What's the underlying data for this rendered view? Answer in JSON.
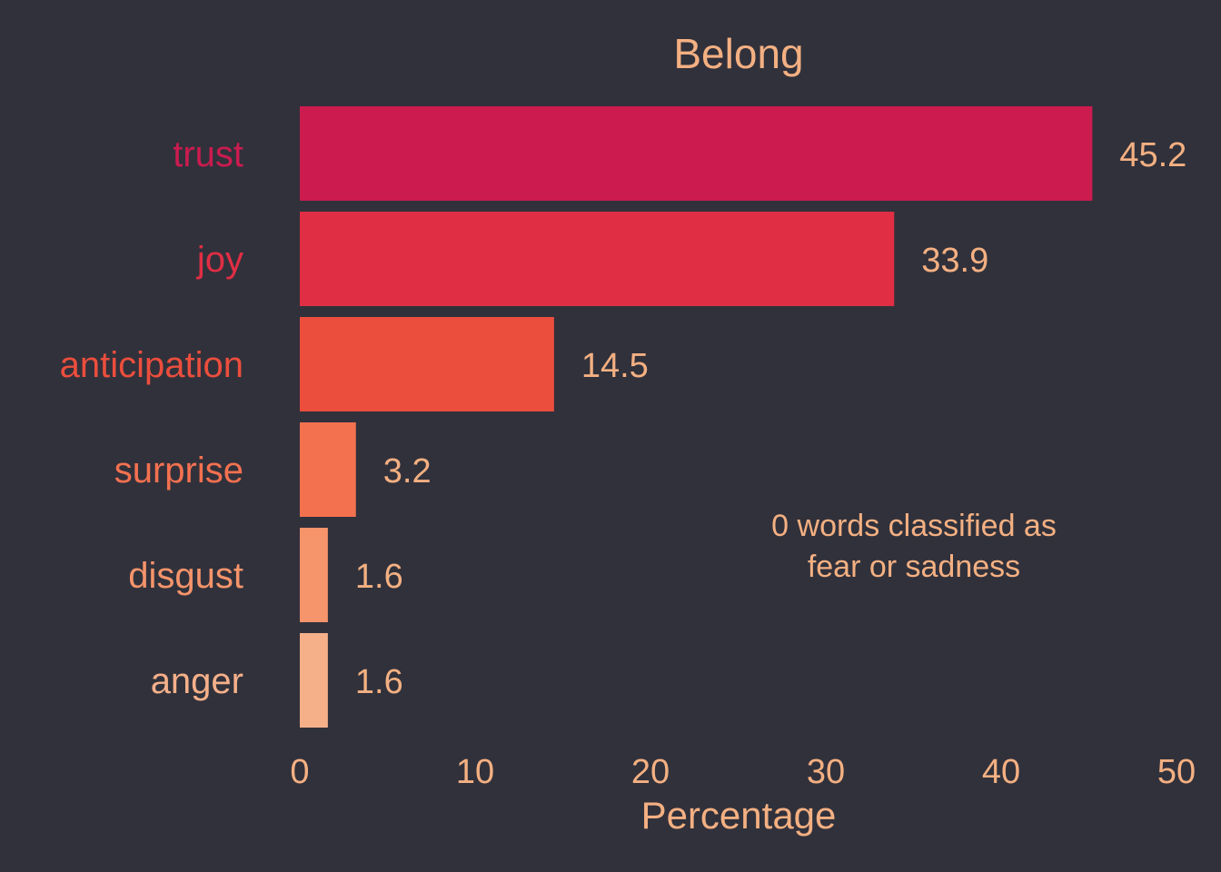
{
  "chart_data": {
    "type": "bar",
    "orientation": "horizontal",
    "title": "Belong",
    "xlabel": "Percentage",
    "ylabel": "",
    "xlim": [
      0,
      50
    ],
    "xticks": [
      0,
      10,
      20,
      30,
      40,
      50
    ],
    "grid": false,
    "categories": [
      "trust",
      "joy",
      "anticipation",
      "surprise",
      "disgust",
      "anger"
    ],
    "values": [
      45.2,
      33.9,
      14.5,
      3.2,
      1.6,
      1.6
    ],
    "value_labels": [
      "45.2",
      "33.9",
      "14.5",
      "3.2",
      "1.6",
      "1.6"
    ],
    "colors": [
      "#cb1b4f",
      "#e02e44",
      "#ec4e3d",
      "#f47150",
      "#f6946b",
      "#f5b08a"
    ],
    "annotation": {
      "lines": [
        "0 words classified as",
        "fear or sadness"
      ]
    }
  },
  "theme": {
    "background": "#31313b",
    "text_color": "#f4b082"
  }
}
